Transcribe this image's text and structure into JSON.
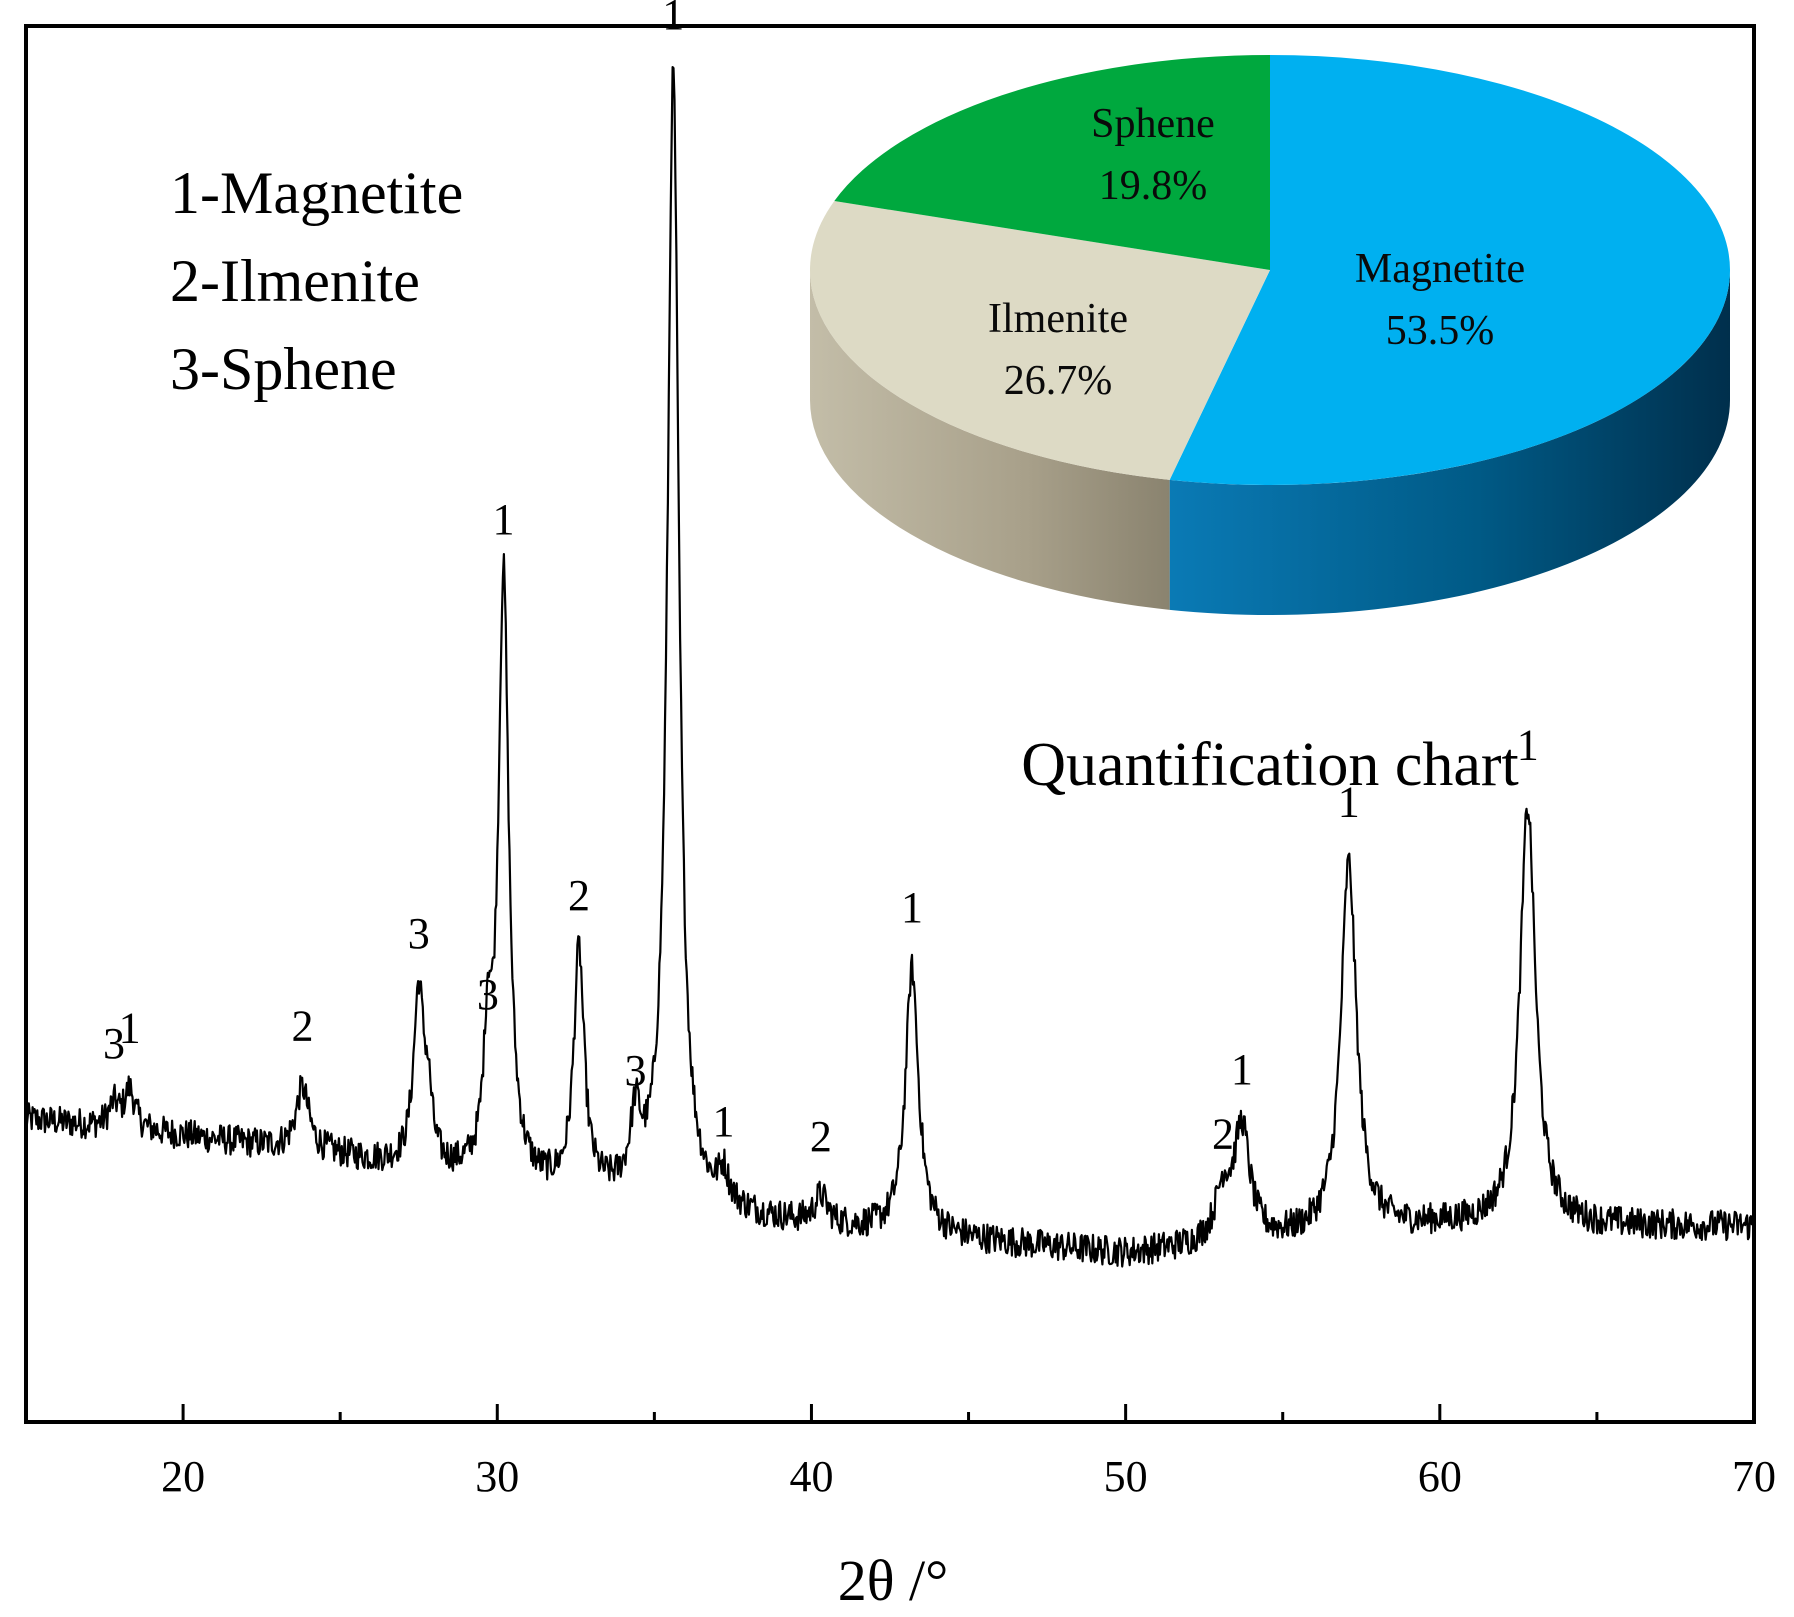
{
  "chart_data": [
    {
      "type": "line",
      "title": "",
      "xlabel": "2θ /°",
      "ylabel": "",
      "xlim": [
        15,
        70
      ],
      "ylim": [
        0,
        1000
      ],
      "x_ticks_major": [
        20,
        30,
        40,
        50,
        60,
        70
      ],
      "x_ticks_minor": [
        25,
        35,
        45,
        55,
        65
      ],
      "x_tick_labels": [
        "20",
        "30",
        "40",
        "50",
        "60",
        "70"
      ],
      "y_ticks": false,
      "legend": [
        "1-Magnetite",
        "2-Ilmenite",
        "3-Sphene"
      ],
      "legend_position": "top-left",
      "baseline": {
        "x": [
          15,
          20,
          25,
          30,
          35,
          40,
          45,
          50,
          55,
          60,
          65,
          70
        ],
        "y": [
          217,
          205,
          190,
          170,
          155,
          140,
          130,
          120,
          130,
          140,
          140,
          140
        ]
      },
      "peaks": [
        {
          "x": 17.8,
          "height": 16,
          "width": 0.2,
          "label": "3"
        },
        {
          "x": 18.3,
          "height": 28,
          "width": 0.2,
          "label": "1"
        },
        {
          "x": 23.8,
          "height": 45,
          "width": 0.25,
          "label": "2"
        },
        {
          "x": 27.5,
          "height": 125,
          "width": 0.2,
          "label": "3"
        },
        {
          "x": 27.8,
          "height": 40,
          "width": 0.15,
          "label": ""
        },
        {
          "x": 29.7,
          "height": 90,
          "width": 0.15,
          "label": "3"
        },
        {
          "x": 30.2,
          "height": 432,
          "width": 0.2,
          "label": "1"
        },
        {
          "x": 32.6,
          "height": 170,
          "width": 0.2,
          "label": "2"
        },
        {
          "x": 34.4,
          "height": 50,
          "width": 0.2,
          "label": "3"
        },
        {
          "x": 35.6,
          "height": 810,
          "width": 0.22,
          "label": "1"
        },
        {
          "x": 37.2,
          "height": 22,
          "width": 0.2,
          "label": "1"
        },
        {
          "x": 40.3,
          "height": 20,
          "width": 0.25,
          "label": "2"
        },
        {
          "x": 43.2,
          "height": 190,
          "width": 0.25,
          "label": "1"
        },
        {
          "x": 53.1,
          "height": 35,
          "width": 0.3,
          "label": "2"
        },
        {
          "x": 53.7,
          "height": 80,
          "width": 0.3,
          "label": "1"
        },
        {
          "x": 57.1,
          "height": 265,
          "width": 0.3,
          "label": "1"
        },
        {
          "x": 62.8,
          "height": 300,
          "width": 0.3,
          "label": "1"
        }
      ]
    },
    {
      "type": "pie",
      "title": "Quantification chart",
      "slices": [
        {
          "name": "Magnetite",
          "value": 53.5,
          "label": "53.5%",
          "color": "#00b0f0",
          "side_color": "#005e8a"
        },
        {
          "name": "Ilmenite",
          "value": 26.7,
          "label": "26.7%",
          "color": "#dddac5",
          "side_color": "#a9a390"
        },
        {
          "name": "Sphene",
          "value": 19.8,
          "label": "19.8%",
          "color": "#00a83e",
          "side_color": "#00702a"
        }
      ]
    }
  ]
}
